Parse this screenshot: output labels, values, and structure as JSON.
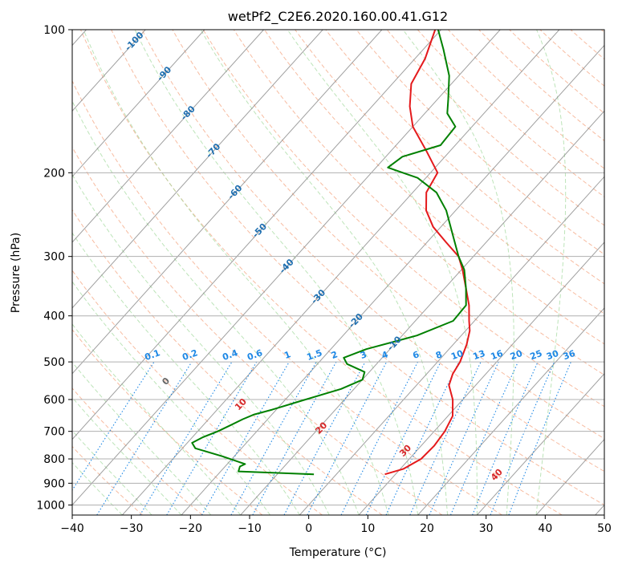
{
  "chart_data": {
    "type": "line",
    "title": "wetPf2_C2E6.2020.160.00.41.G12",
    "xlabel": "Temperature (°C)",
    "ylabel": "Pressure (hPa)",
    "xlim": [
      -40,
      50
    ],
    "ylim": [
      1050,
      100
    ],
    "y_scale": "log",
    "x_ticks": [
      -40,
      -30,
      -20,
      -10,
      0,
      10,
      20,
      30,
      40,
      50
    ],
    "y_ticks": [
      100,
      200,
      300,
      400,
      500,
      600,
      700,
      800,
      900,
      1000
    ],
    "grid": true,
    "colors": {
      "temperature": "#e41a1c",
      "dewpoint": "#008000",
      "isotherm": "#888888",
      "dry_adiabat": "#f4a582",
      "moist_adiabat": "#a1d99b",
      "mixing_ratio": "#1e88e5",
      "isotherm_label": "#1f6fb0",
      "dry_adiabat_label": "#d62728"
    },
    "series": [
      {
        "name": "",
        "role": "temperature",
        "points": [
          {
            "p": 862,
            "t": 8.2
          },
          {
            "p": 840,
            "t": 10.5
          },
          {
            "p": 800,
            "t": 12.0
          },
          {
            "p": 750,
            "t": 12.2
          },
          {
            "p": 700,
            "t": 11.8
          },
          {
            "p": 650,
            "t": 10.8
          },
          {
            "p": 600,
            "t": 8.3
          },
          {
            "p": 560,
            "t": 5.5
          },
          {
            "p": 530,
            "t": 4.4
          },
          {
            "p": 500,
            "t": 3.8
          },
          {
            "p": 460,
            "t": 2.3
          },
          {
            "p": 430,
            "t": 0.7
          },
          {
            "p": 410,
            "t": -0.9
          },
          {
            "p": 380,
            "t": -3.3
          },
          {
            "p": 350,
            "t": -6.4
          },
          {
            "p": 320,
            "t": -9.8
          },
          {
            "p": 300,
            "t": -12.5
          },
          {
            "p": 280,
            "t": -16.8
          },
          {
            "p": 260,
            "t": -21.3
          },
          {
            "p": 240,
            "t": -25.0
          },
          {
            "p": 220,
            "t": -27.7
          },
          {
            "p": 200,
            "t": -28.8
          },
          {
            "p": 180,
            "t": -34.0
          },
          {
            "p": 160,
            "t": -40.0
          },
          {
            "p": 145,
            "t": -43.6
          },
          {
            "p": 130,
            "t": -46.8
          },
          {
            "p": 115,
            "t": -48.3
          },
          {
            "p": 100,
            "t": -51.0
          }
        ]
      },
      {
        "name": "",
        "role": "dewpoint",
        "points": [
          {
            "p": 862,
            "t": -3.8
          },
          {
            "p": 850,
            "t": -17.0
          },
          {
            "p": 830,
            "t": -17.5
          },
          {
            "p": 820,
            "t": -17.0
          },
          {
            "p": 790,
            "t": -22.0
          },
          {
            "p": 760,
            "t": -27.8
          },
          {
            "p": 740,
            "t": -29.2
          },
          {
            "p": 720,
            "t": -28.2
          },
          {
            "p": 700,
            "t": -26.6
          },
          {
            "p": 680,
            "t": -25.4
          },
          {
            "p": 660,
            "t": -24.2
          },
          {
            "p": 645,
            "t": -23.0
          },
          {
            "p": 630,
            "t": -20.7
          },
          {
            "p": 600,
            "t": -16.6
          },
          {
            "p": 570,
            "t": -12.2
          },
          {
            "p": 545,
            "t": -10.0
          },
          {
            "p": 525,
            "t": -10.8
          },
          {
            "p": 505,
            "t": -15.0
          },
          {
            "p": 490,
            "t": -16.5
          },
          {
            "p": 470,
            "t": -14.0
          },
          {
            "p": 440,
            "t": -7.5
          },
          {
            "p": 410,
            "t": -3.6
          },
          {
            "p": 380,
            "t": -3.8
          },
          {
            "p": 350,
            "t": -6.4
          },
          {
            "p": 320,
            "t": -9.5
          },
          {
            "p": 300,
            "t": -12.5
          },
          {
            "p": 270,
            "t": -16.8
          },
          {
            "p": 240,
            "t": -21.6
          },
          {
            "p": 220,
            "t": -26.0
          },
          {
            "p": 205,
            "t": -31.4
          },
          {
            "p": 195,
            "t": -38.0
          },
          {
            "p": 185,
            "t": -37.2
          },
          {
            "p": 175,
            "t": -32.5
          },
          {
            "p": 160,
            "t": -32.8
          },
          {
            "p": 150,
            "t": -36.2
          },
          {
            "p": 140,
            "t": -38.2
          },
          {
            "p": 125,
            "t": -41.6
          },
          {
            "p": 110,
            "t": -46.6
          },
          {
            "p": 100,
            "t": -50.5
          }
        ]
      }
    ],
    "isotherm_labels": [
      "-100",
      "-90",
      "-80",
      "-70",
      "-60",
      "-50",
      "-40",
      "-30",
      "-20",
      "-10"
    ],
    "isotherm_label_values": [
      -100,
      -90,
      -80,
      -70,
      -60,
      -50,
      -40,
      -30,
      -20,
      -10
    ],
    "dry_adiabat_labels": [
      "0",
      "10",
      "20",
      "30",
      "40"
    ],
    "dry_adiabat_label_values": [
      0,
      10,
      20,
      30,
      40
    ],
    "mixing_ratio_labels": [
      "0.1",
      "0.2",
      "0.4",
      "0.6",
      "1",
      "1.5",
      "2",
      "3",
      "4",
      "6",
      "8",
      "10",
      "13",
      "16",
      "20",
      "25",
      "30",
      "36"
    ],
    "mixing_ratio_values": [
      0.1,
      0.2,
      0.4,
      0.6,
      1,
      1.5,
      2,
      3,
      4,
      6,
      8,
      10,
      13,
      16,
      20,
      25,
      30,
      36
    ]
  }
}
